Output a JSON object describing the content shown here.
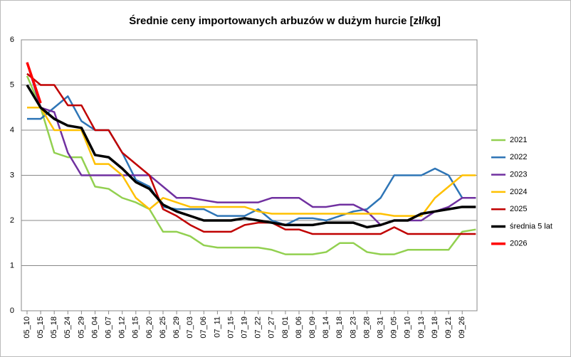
{
  "chart_data": {
    "type": "line",
    "title": "Średnie ceny importowanych arbuzów w dużym hurcie [zł/kg]",
    "categories": [
      "05_10",
      "05_15",
      "05_18",
      "05_24",
      "05_29",
      "06_04",
      "06_07",
      "06_12",
      "06_15",
      "06_20",
      "06_25",
      "06_29",
      "07_03",
      "07_06",
      "07_11",
      "07_15",
      "07_19",
      "07_22",
      "07_27",
      "08_01",
      "08_06",
      "08_09",
      "08_14",
      "08_18",
      "08_23",
      "08_28",
      "08_31",
      "09_05",
      "09_10",
      "09_13",
      "09_18",
      "09_21",
      "09_26",
      null
    ],
    "series": [
      {
        "name": "2021",
        "color": "#92d050",
        "width": 2.5,
        "values": [
          5.2,
          4.5,
          3.5,
          3.4,
          3.4,
          2.75,
          2.7,
          2.5,
          2.4,
          2.25,
          1.75,
          1.75,
          1.65,
          1.45,
          1.4,
          1.4,
          1.4,
          1.4,
          1.35,
          1.25,
          1.25,
          1.25,
          1.3,
          1.5,
          1.5,
          1.3,
          1.25,
          1.25,
          1.35,
          1.35,
          1.35,
          1.35,
          1.75,
          1.8
        ]
      },
      {
        "name": "2022",
        "color": "#2e75b6",
        "width": 2.5,
        "values": [
          4.25,
          4.25,
          4.5,
          4.75,
          4.2,
          4.0,
          4.0,
          3.5,
          2.9,
          2.75,
          2.3,
          2.25,
          2.25,
          2.25,
          2.1,
          2.1,
          2.1,
          2.25,
          2.0,
          1.9,
          2.05,
          2.05,
          2.0,
          2.1,
          2.2,
          2.25,
          2.5,
          3.0,
          3.0,
          3.0,
          3.15,
          3.0,
          2.5,
          2.5
        ]
      },
      {
        "name": "2023",
        "color": "#7030a0",
        "width": 2.5,
        "values": [
          5.5,
          4.5,
          4.4,
          3.5,
          3.0,
          3.0,
          3.0,
          3.0,
          3.0,
          3.0,
          2.75,
          2.5,
          2.5,
          2.45,
          2.4,
          2.4,
          2.4,
          2.4,
          2.5,
          2.5,
          2.5,
          2.3,
          2.3,
          2.35,
          2.35,
          2.2,
          1.9,
          2.0,
          2.0,
          2.0,
          2.2,
          2.3,
          2.5,
          2.5
        ]
      },
      {
        "name": "2024",
        "color": "#ffc000",
        "width": 2.5,
        "values": [
          4.5,
          4.5,
          4.0,
          4.0,
          4.0,
          3.25,
          3.25,
          3.0,
          2.5,
          2.25,
          2.5,
          2.4,
          2.3,
          2.3,
          2.3,
          2.3,
          2.3,
          2.2,
          2.15,
          2.15,
          2.15,
          2.15,
          2.15,
          2.15,
          2.15,
          2.15,
          2.15,
          2.1,
          2.1,
          2.1,
          2.5,
          2.75,
          3.0,
          3.0
        ]
      },
      {
        "name": "2025",
        "color": "#c00000",
        "width": 2.5,
        "values": [
          5.25,
          5.0,
          5.0,
          4.55,
          4.55,
          4.0,
          4.0,
          3.5,
          3.25,
          3.0,
          2.25,
          2.1,
          1.9,
          1.75,
          1.75,
          1.75,
          1.9,
          1.95,
          1.95,
          1.8,
          1.8,
          1.7,
          1.7,
          1.7,
          1.7,
          1.7,
          1.7,
          1.85,
          1.7,
          1.7,
          1.7,
          1.7,
          1.7,
          1.7
        ]
      },
      {
        "name": "średnia 5 lat",
        "color": "#000000",
        "width": 3.5,
        "values": [
          5.0,
          4.5,
          4.25,
          4.1,
          4.05,
          3.45,
          3.4,
          3.15,
          2.85,
          2.7,
          2.35,
          2.2,
          2.1,
          2.0,
          2.0,
          2.0,
          2.05,
          2.0,
          1.95,
          1.9,
          1.9,
          1.9,
          1.95,
          1.95,
          1.95,
          1.85,
          1.9,
          2.0,
          2.0,
          2.15,
          2.2,
          2.25,
          2.3,
          2.3
        ]
      },
      {
        "name": "2026",
        "color": "#ff0000",
        "width": 3.5,
        "values": [
          5.5,
          4.6,
          null,
          null,
          null,
          null,
          null,
          null,
          null,
          null,
          null,
          null,
          null,
          null,
          null,
          null,
          null,
          null,
          null,
          null,
          null,
          null,
          null,
          null,
          null,
          null,
          null,
          null,
          null,
          null,
          null,
          null,
          null,
          null
        ]
      }
    ],
    "ylim": [
      0,
      6
    ],
    "yticks": [
      0,
      1,
      2,
      3,
      4,
      5,
      6
    ],
    "grid": true
  }
}
